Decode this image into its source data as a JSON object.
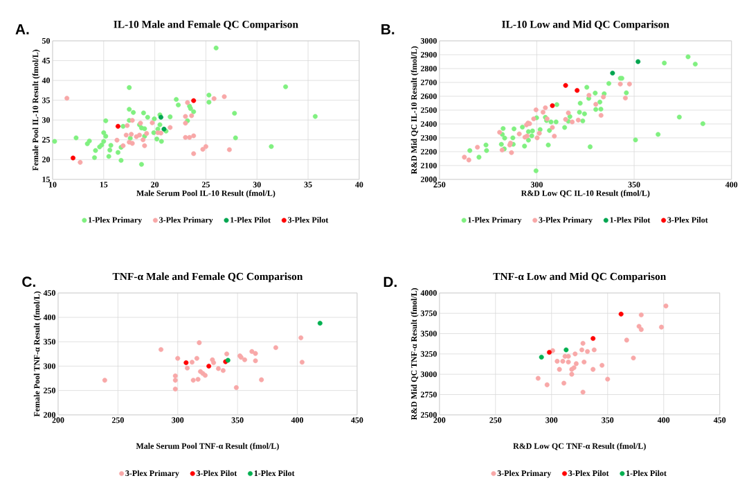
{
  "chart_data": [
    {
      "type": "scatter",
      "title": "IL-10 Male and Female QC Comparison",
      "xlabel": "Male Serum Pool IL-10 Result (fmol/L)",
      "ylabel": "Female Pool IL-10 Result (fmol/L)",
      "annotations": [
        "A."
      ],
      "xlim": [
        10,
        40
      ],
      "ylim": [
        15,
        50
      ],
      "xticks": [
        10,
        15,
        20,
        25,
        30,
        35,
        40
      ],
      "yticks": [
        15,
        20,
        25,
        30,
        35,
        40,
        45,
        50
      ],
      "grid": true,
      "legend": "bottom",
      "series": [
        {
          "name": "1-Plex Primary",
          "color": "#80f080",
          "x": [
            10.2,
            12.3,
            13.4,
            13.6,
            14.1,
            14.2,
            14.6,
            14.8,
            15.0,
            15.0,
            15.2,
            15.2,
            15.5,
            15.6,
            15.7,
            16.4,
            16.7,
            16.7,
            16.9,
            17.5,
            17.5,
            17.5,
            17.6,
            17.9,
            18.5,
            18.7,
            18.7,
            18.9,
            19.0,
            19.0,
            19.3,
            19.9,
            19.95,
            20.2,
            20.3,
            20.5,
            20.5,
            20.65,
            21.1,
            21.5,
            22.1,
            22.3,
            23.2,
            23.4,
            23.5,
            23.8,
            25.3,
            25.3,
            26.0,
            27.8,
            27.9,
            31.4,
            32.8,
            35.7
          ],
          "values": [
            24.6,
            25.5,
            24.0,
            24.7,
            20.5,
            22.3,
            23.2,
            23.7,
            24.6,
            26.8,
            29.8,
            25.9,
            20.8,
            22.4,
            23.6,
            21.8,
            23.1,
            19.8,
            28.4,
            38.2,
            32.7,
            29.9,
            25.4,
            31.9,
            28.8,
            28.0,
            18.8,
            31.8,
            27.8,
            25.9,
            30.7,
            26.8,
            30.3,
            25.2,
            27.7,
            31.3,
            28.8,
            24.6,
            27.2,
            30.8,
            35.2,
            33.8,
            29.8,
            33.5,
            32.9,
            32.1,
            36.3,
            34.5,
            48.2,
            31.7,
            25.5,
            23.3,
            38.4,
            30.9
          ]
        },
        {
          "name": "3-Plex Primary",
          "color": "#f8a8a8",
          "x": [
            11.4,
            12.7,
            16.3,
            16.9,
            17.2,
            17.3,
            17.5,
            17.7,
            17.8,
            17.8,
            18.2,
            18.5,
            18.6,
            18.85,
            19.0,
            19.2,
            19.75,
            20.3,
            20.6,
            21.5,
            23.0,
            23.0,
            23.0,
            23.2,
            23.4,
            23.6,
            23.8,
            23.8,
            24.7,
            25.0,
            25.8,
            26.8,
            27.3
          ],
          "values": [
            35.5,
            19.3,
            24.9,
            23.5,
            26.2,
            28.6,
            24.4,
            26.4,
            24.1,
            29.9,
            25.8,
            26.2,
            29.2,
            25.0,
            23.5,
            26.6,
            29.3,
            26.8,
            26.7,
            28.1,
            30.9,
            29.2,
            25.6,
            34.4,
            25.6,
            31.1,
            26.0,
            21.5,
            22.6,
            23.3,
            35.4,
            35.9,
            22.5
          ]
        },
        {
          "name": "1-Plex Pilot",
          "color": "#00a550",
          "x": [
            20.6,
            20.9
          ],
          "values": [
            30.7,
            27.7
          ]
        },
        {
          "name": "3-Plex Pilot",
          "color": "#ff0000",
          "x": [
            12.0,
            16.4,
            23.8
          ],
          "values": [
            20.4,
            28.4,
            34.9
          ]
        }
      ]
    },
    {
      "type": "scatter",
      "title": "IL-10 Low and Mid QC Comparison",
      "xlabel": "R&D Low QC IL-10 Result (fmol/L)",
      "ylabel": "R&D Mid QC IL-10 Result (fmol/L)",
      "annotations": [
        "B."
      ],
      "xlim": [
        250,
        400
      ],
      "ylim": [
        2000,
        3000
      ],
      "xticks": [
        250,
        300,
        350,
        400
      ],
      "yticks": [
        2000,
        2100,
        2200,
        2300,
        2400,
        2500,
        2600,
        2700,
        2800,
        2900,
        3000
      ],
      "grid": true,
      "legend": "bottom",
      "series": [
        {
          "name": "1-Plex Primary",
          "color": "#80f080",
          "x": [
            265.6,
            270.3,
            273.9,
            274.2,
            281.8,
            282.3,
            282.7,
            283.5,
            283.3,
            287.7,
            287.9,
            288.3,
            292.6,
            293.7,
            295.7,
            295.7,
            297.4,
            297.8,
            299.9,
            299.6,
            301.7,
            304.4,
            305.0,
            305.9,
            306.5,
            307.3,
            310.3,
            309.9,
            314.3,
            316.2,
            317.0,
            321.9,
            322.3,
            323.6,
            324.5,
            325.7,
            326.7,
            327.4,
            330.0,
            330.3,
            332.4,
            332.9,
            334.6,
            337.0,
            342.9,
            343.7,
            346.0,
            350.7,
            362.3,
            365.5,
            373.2,
            377.7,
            381.4,
            385.3
          ],
          "values": [
            2208,
            2160,
            2248,
            2208,
            2253,
            2325,
            2367,
            2298,
            2220,
            2300,
            2253,
            2365,
            2377,
            2240,
            2345,
            2283,
            2315,
            2350,
            2445,
            2062,
            2360,
            2448,
            2425,
            2248,
            2353,
            2415,
            2540,
            2415,
            2375,
            2420,
            2453,
            2485,
            2550,
            2422,
            2473,
            2665,
            2585,
            2235,
            2623,
            2505,
            2558,
            2507,
            2618,
            2692,
            2730,
            2730,
            2625,
            2285,
            2325,
            2840,
            2450,
            2885,
            2832,
            2402
          ]
        },
        {
          "name": "3-Plex Primary",
          "color": "#f8a8a8",
          "x": [
            262.8,
            265.1,
            269.5,
            280.9,
            282.2,
            286.1,
            286.5,
            287.0,
            291.0,
            293.9,
            294.7,
            295.0,
            295.5,
            296.3,
            298.4,
            299.6,
            300.2,
            301.3,
            303.2,
            304.4,
            305.3,
            308.0,
            309.0,
            314.8,
            316.2,
            318.2,
            321.3,
            326.8,
            330.3,
            333.0,
            334.2,
            342.9,
            345.5,
            347.6
          ],
          "values": [
            2160,
            2140,
            2232,
            2340,
            2212,
            2248,
            2262,
            2193,
            2328,
            2305,
            2393,
            2313,
            2407,
            2402,
            2437,
            2502,
            2300,
            2333,
            2485,
            2517,
            2437,
            2375,
            2312,
            2433,
            2480,
            2415,
            2428,
            2607,
            2542,
            2462,
            2595,
            2688,
            2587,
            2688
          ]
        },
        {
          "name": "1-Plex Pilot",
          "color": "#00a550",
          "x": [
            338.9,
            352.0
          ],
          "values": [
            2767,
            2850
          ]
        },
        {
          "name": "3-Plex Pilot",
          "color": "#ff0000",
          "x": [
            308.0,
            314.8,
            320.7
          ],
          "values": [
            2532,
            2678,
            2642
          ]
        }
      ]
    },
    {
      "type": "scatter",
      "title": "TNF-α Male and Female QC Comparison",
      "xlabel": "Male Serum Pool TNF-α Result (fmol/L)",
      "ylabel": "Female Pool TNF-α Result (fmol/L)",
      "annotations": [
        "C."
      ],
      "xlim": [
        200,
        450
      ],
      "ylim": [
        200,
        450
      ],
      "xticks": [
        200,
        250,
        300,
        350,
        400,
        450
      ],
      "yticks": [
        200,
        250,
        300,
        350,
        400,
        450
      ],
      "grid": true,
      "legend": "bottom",
      "series": [
        {
          "name": "3-Plex Primary",
          "color": "#f8a8a8",
          "x": [
            239,
            286,
            298,
            298,
            298,
            300,
            308,
            312,
            313,
            316,
            317,
            318,
            319,
            321,
            323,
            329,
            330,
            334,
            338,
            341,
            349,
            352,
            353,
            356,
            362,
            365,
            365,
            370,
            382,
            403,
            404
          ],
          "values": [
            271,
            334,
            253,
            271,
            280,
            316,
            296,
            308,
            271,
            316,
            273,
            348,
            289,
            285,
            281,
            313,
            307,
            295,
            291,
            325,
            256,
            321,
            318,
            313,
            330,
            326,
            311,
            272,
            338,
            358,
            308
          ]
        },
        {
          "name": "3-Plex Pilot",
          "color": "#ff0000",
          "x": [
            307,
            326,
            340
          ],
          "values": [
            307,
            300,
            309
          ]
        },
        {
          "name": "1-Plex Pilot",
          "color": "#00b050",
          "x": [
            342,
            419
          ],
          "values": [
            312,
            388
          ]
        }
      ]
    },
    {
      "type": "scatter",
      "title": "TNF-α Low and Mid QC Comparison",
      "xlabel": "R&D Low QC TNF-α Result (fmol/L)",
      "ylabel": "R&D Mid QC TNF-α Result (fmol/L)",
      "annotations": [
        "D."
      ],
      "xlim": [
        200,
        450
      ],
      "ylim": [
        2500,
        4000
      ],
      "xticks": [
        200,
        250,
        300,
        350,
        400,
        450
      ],
      "yticks": [
        2500,
        2750,
        3000,
        3250,
        3500,
        3750,
        4000
      ],
      "grid": true,
      "legend": "bottom",
      "series": [
        {
          "name": "3-Plex Primary",
          "color": "#f8a8a8",
          "x": [
            288,
            296,
            301,
            305,
            307,
            310,
            311,
            312,
            315,
            315,
            318,
            318,
            320,
            321,
            322,
            327,
            328,
            328,
            329,
            332,
            337,
            338,
            345,
            350,
            367,
            373,
            378,
            380,
            380,
            398,
            402
          ],
          "values": [
            2950,
            2870,
            3290,
            3160,
            3060,
            3160,
            2890,
            3220,
            3150,
            3220,
            3060,
            3000,
            3080,
            3250,
            3130,
            3300,
            3380,
            2780,
            3150,
            3280,
            3060,
            3300,
            3110,
            2940,
            3420,
            3200,
            3590,
            3550,
            3730,
            3580,
            3840
          ]
        },
        {
          "name": "3-Plex Pilot",
          "color": "#ff0000",
          "x": [
            298,
            337,
            362
          ],
          "values": [
            3270,
            3440,
            3740
          ]
        },
        {
          "name": "1-Plex Pilot",
          "color": "#00b050",
          "x": [
            291,
            313
          ],
          "values": [
            3210,
            3300
          ]
        }
      ]
    }
  ]
}
